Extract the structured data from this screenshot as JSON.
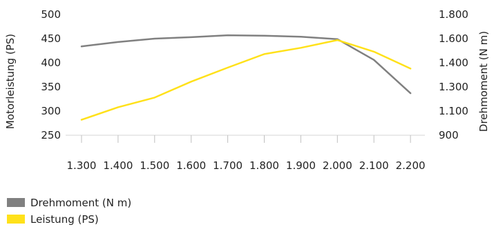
{
  "chart_data": {
    "type": "line",
    "x": [
      "1.300",
      "1.400",
      "1.500",
      "1.600",
      "1.700",
      "1.800",
      "1.900",
      "2.000",
      "2.100",
      "2.200"
    ],
    "xlabel": "",
    "y_left": {
      "label": "Motorleistung (PS)",
      "ticks": [
        "500",
        "450",
        "400",
        "350",
        "300",
        "250"
      ],
      "range": [
        250,
        500
      ]
    },
    "y_right": {
      "label": "Drehmoment (N m)",
      "ticks": [
        "1.800",
        "1.600",
        "1.400",
        "1.300",
        "1.100",
        "900"
      ],
      "note": "right tick labels are printed at the same heights as the left grid steps"
    },
    "series": [
      {
        "name": "Drehmoment (N m)",
        "color": "#808080",
        "axis": "y_left_scale",
        "values": [
          434,
          443,
          450,
          453,
          457,
          456,
          454,
          449,
          406,
          337
        ]
      },
      {
        "name": "Leistung (PS)",
        "color": "#ffe11a",
        "axis": "y_left_scale",
        "values": [
          282,
          308,
          328,
          361,
          390,
          418,
          431,
          447,
          423,
          388
        ]
      }
    ],
    "grid": false,
    "legend": "bottom-left"
  },
  "colors": {
    "torque": "#808080",
    "power": "#ffe11a"
  }
}
